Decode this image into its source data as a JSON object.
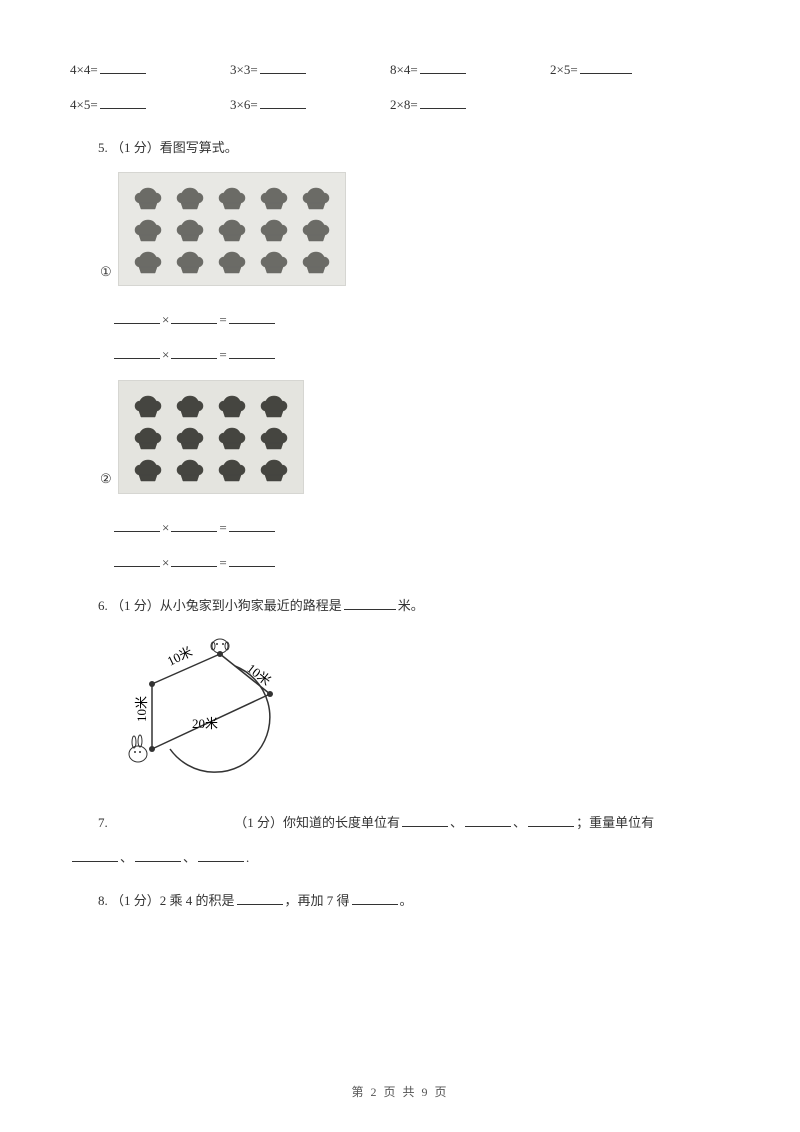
{
  "eq_row1": [
    {
      "expr": "4×4="
    },
    {
      "expr": "3×3="
    },
    {
      "expr": "8×4="
    },
    {
      "expr": "2×5="
    }
  ],
  "eq_row2": [
    {
      "expr": "4×5="
    },
    {
      "expr": "3×6="
    },
    {
      "expr": "2×8="
    }
  ],
  "q5": {
    "num": "5. ",
    "points": "（1 分）",
    "text": "看图写算式。"
  },
  "grid1": {
    "label": "①",
    "rows": 3,
    "cols": 5,
    "fill": "#6b6b66",
    "bg": "#e8e8e4"
  },
  "grid2": {
    "label": "②",
    "rows": 3,
    "cols": 4,
    "fill": "#454540",
    "bg": "#e4e4df"
  },
  "mult_sym": "×",
  "eq_sym": "=",
  "q6": {
    "num": "6. ",
    "points": "（1 分）",
    "text_a": "从小兔家到小狗家最近的路程是",
    "text_b": "米。"
  },
  "diagram": {
    "labels": {
      "top_left": "10米",
      "top_right": "10米",
      "left": "10米",
      "mid": "20米"
    },
    "stroke": "#333333"
  },
  "q7": {
    "num": "7. ",
    "points": "（1 分）",
    "text_a": "你知道的长度单位有",
    "sep1": "、",
    "sep2": "、",
    "text_b": "；重量单位有",
    "tail": "."
  },
  "q8": {
    "num": "8. ",
    "points": "（1 分）",
    "text_a": "2 乘 4 的积是",
    "text_b": "，再加 7 得",
    "text_c": "。"
  },
  "footer": "第 2 页 共 9 页"
}
